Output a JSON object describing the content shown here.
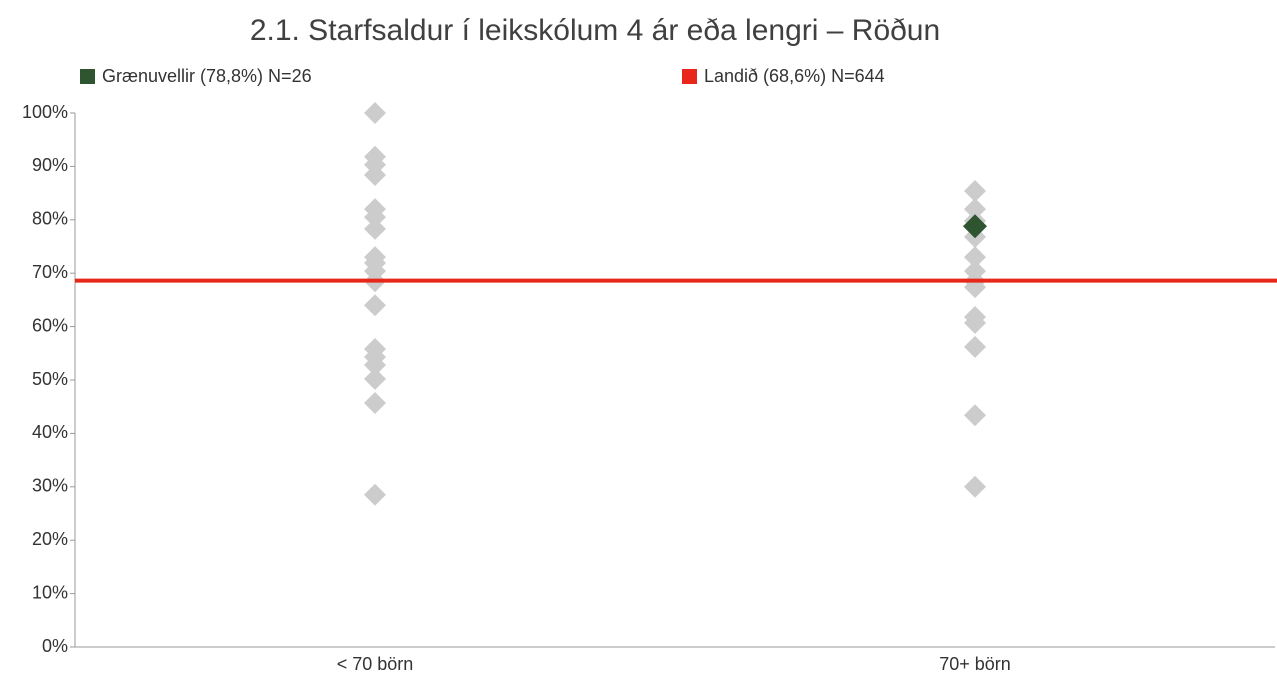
{
  "chart_data": {
    "type": "strip",
    "title": "2.1. Starfsaldur í leikskólum 4 ár eða lengri – Röðun",
    "categories": [
      "< 70 börn",
      "70+ börn"
    ],
    "points": [
      [
        100,
        91.8,
        90.3,
        88.4,
        82,
        80.5,
        78.3,
        73,
        71.9,
        70.4,
        68.5,
        64,
        55.8,
        54.3,
        52.8,
        50.2,
        45.7,
        28.5
      ],
      [
        85.4,
        82,
        79.8,
        76.8,
        73,
        70.4,
        68.5,
        67.4,
        61.8,
        60.7,
        56.2,
        43.4,
        30
      ]
    ],
    "point_color": "#cccccc",
    "highlight": {
      "name": "Grænuvellir (78,8%) N=26",
      "color": "#2e5530",
      "values": [
        null,
        78.8
      ]
    },
    "reference_line": {
      "name": "Landið (68,6%) N=644",
      "color": "#e8261a",
      "value": 68.6
    },
    "ylim": [
      0,
      100
    ],
    "yticks": [
      {
        "value": 0,
        "label": "0%"
      },
      {
        "value": 10,
        "label": "10%"
      },
      {
        "value": 20,
        "label": "20%"
      },
      {
        "value": 30,
        "label": "30%"
      },
      {
        "value": 40,
        "label": "40%"
      },
      {
        "value": 50,
        "label": "50%"
      },
      {
        "value": 60,
        "label": "60%"
      },
      {
        "value": 70,
        "label": "70%"
      },
      {
        "value": 80,
        "label": "80%"
      },
      {
        "value": 90,
        "label": "90%"
      },
      {
        "value": 100,
        "label": "100%"
      }
    ]
  }
}
